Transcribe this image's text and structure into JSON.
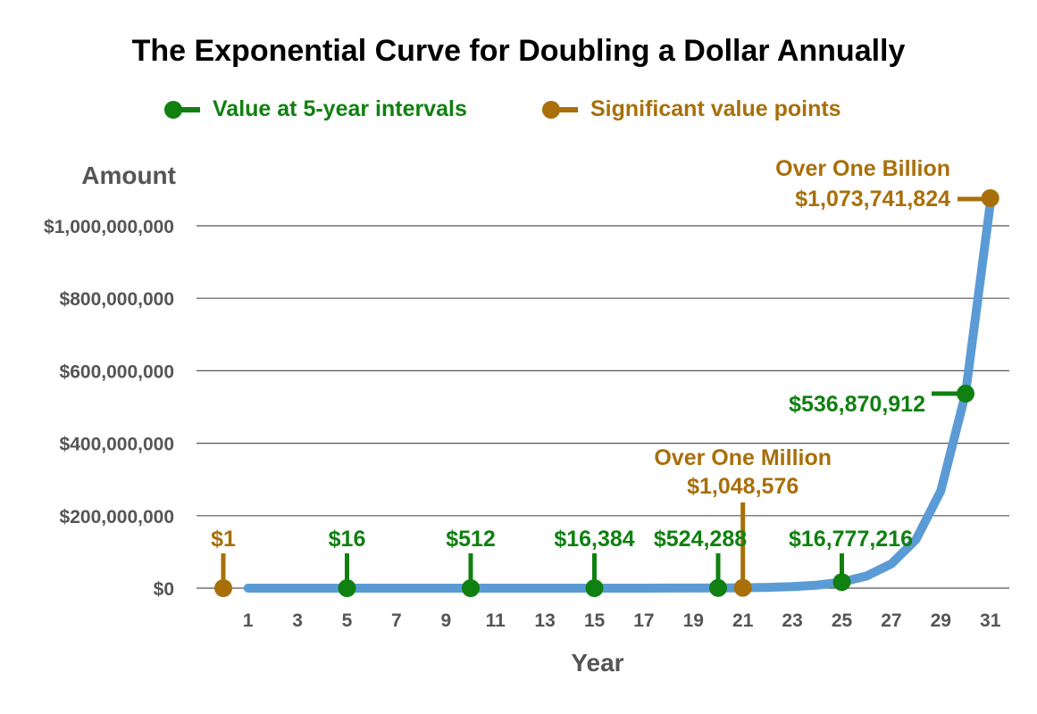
{
  "colors": {
    "curve": "#5b9bd5",
    "interval": "#108010",
    "significant": "#a86f0a",
    "grid": "#555555",
    "text": "#595959"
  },
  "chart_data": {
    "type": "line",
    "title": "The Exponential Curve for Doubling a Dollar Annually",
    "xlabel": "Year",
    "ylabel": "Amount",
    "xlim": [
      0,
      31
    ],
    "ylim": [
      0,
      1000000000
    ],
    "x_ticks": [
      1,
      3,
      5,
      7,
      9,
      11,
      13,
      15,
      17,
      19,
      21,
      23,
      25,
      27,
      29,
      31
    ],
    "x_tick_labels": [
      "1",
      "3",
      "5",
      "7",
      "9",
      "11",
      "13",
      "15",
      "17",
      "19",
      "21",
      "23",
      "25",
      "27",
      "29",
      "31"
    ],
    "y_ticks": [
      0,
      200000000,
      400000000,
      600000000,
      800000000,
      1000000000
    ],
    "y_tick_labels": [
      "$0",
      "$200,000,000",
      "$400,000,000",
      "$600,000,000",
      "$800,000,000",
      "$1,000,000,000"
    ],
    "grid": true,
    "legend_position": "top",
    "legend": [
      {
        "label": "Value at 5-year intervals",
        "color_key": "interval"
      },
      {
        "label": "Significant value points",
        "color_key": "significant"
      }
    ],
    "curve": {
      "x": [
        1,
        2,
        3,
        4,
        5,
        6,
        7,
        8,
        9,
        10,
        11,
        12,
        13,
        14,
        15,
        16,
        17,
        18,
        19,
        20,
        21,
        22,
        23,
        24,
        25,
        26,
        27,
        28,
        29,
        30,
        31
      ],
      "y": [
        1,
        2,
        4,
        8,
        16,
        32,
        64,
        128,
        256,
        512,
        1024,
        2048,
        4096,
        8192,
        16384,
        32768,
        65536,
        131072,
        262144,
        524288,
        1048576,
        2097152,
        4194304,
        8388608,
        16777216,
        33554432,
        67108864,
        134217728,
        268435456,
        536870912,
        1073741824
      ]
    },
    "interval_points": [
      {
        "x": 5,
        "y": 16,
        "label": "$16"
      },
      {
        "x": 10,
        "y": 512,
        "label": "$512"
      },
      {
        "x": 15,
        "y": 16384,
        "label": "$16,384"
      },
      {
        "x": 20,
        "y": 524288,
        "label": "$524,288"
      },
      {
        "x": 25,
        "y": 16777216,
        "label": "$16,777,216"
      },
      {
        "x": 30,
        "y": 536870912,
        "label": "$536,870,912"
      }
    ],
    "significant_points": [
      {
        "x": 0,
        "y": 1,
        "label": "$1"
      },
      {
        "x": 21,
        "y": 1048576,
        "label": "$1,048,576",
        "heading": "Over One Million"
      },
      {
        "x": 31,
        "y": 1073741824,
        "label": "$1,073,741,824",
        "heading": "Over One Billion"
      }
    ]
  }
}
